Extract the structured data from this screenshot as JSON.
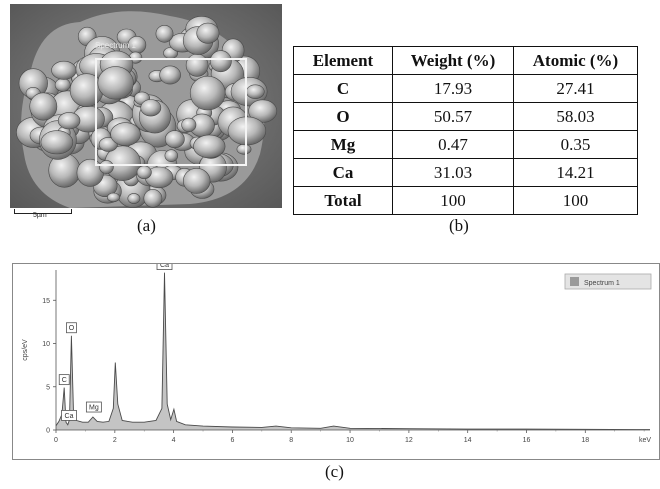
{
  "panel_a": {
    "caption": "(a)",
    "spectrum_tag": "Spectrum 1",
    "scale_label": "5µm"
  },
  "panel_b": {
    "caption": "(b)",
    "headers": [
      "Element",
      "Weight (%)",
      "Atomic (%)"
    ],
    "rows": [
      {
        "element": "C",
        "weight": "17.93",
        "atomic": "27.41"
      },
      {
        "element": "O",
        "weight": "50.57",
        "atomic": "58.03"
      },
      {
        "element": "Mg",
        "weight": "0.47",
        "atomic": "0.35"
      },
      {
        "element": "Ca",
        "weight": "31.03",
        "atomic": "14.21"
      },
      {
        "element": "Total",
        "weight": "100",
        "atomic": "100"
      }
    ]
  },
  "panel_c": {
    "caption": "(c)",
    "legend": "Spectrum 1",
    "legend_color": "#9a9a9a",
    "fill_color": "#c4c4c4",
    "line_color": "#4a4a4a"
  },
  "chart_data": {
    "type": "area",
    "title": "",
    "xlabel": "keV",
    "ylabel": "cps/eV",
    "xlim": [
      0,
      20.2
    ],
    "ylim": [
      0,
      18.5
    ],
    "x_ticks": [
      0,
      2,
      4,
      6,
      8,
      10,
      12,
      14,
      16,
      18
    ],
    "y_ticks": [
      0,
      5,
      10,
      15
    ],
    "legend_position": "top-right",
    "series": [
      {
        "name": "Spectrum 1",
        "points": [
          [
            0.0,
            0.5
          ],
          [
            0.1,
            1.0
          ],
          [
            0.2,
            1.8
          ],
          [
            0.28,
            4.9
          ],
          [
            0.34,
            0.9
          ],
          [
            0.4,
            0.6
          ],
          [
            0.46,
            1.2
          ],
          [
            0.525,
            10.9
          ],
          [
            0.6,
            1.6
          ],
          [
            0.7,
            1.1
          ],
          [
            0.9,
            0.9
          ],
          [
            1.1,
            0.9
          ],
          [
            1.254,
            1.5
          ],
          [
            1.4,
            1.0
          ],
          [
            1.6,
            0.9
          ],
          [
            1.8,
            1.0
          ],
          [
            1.95,
            2.5
          ],
          [
            2.015,
            7.8
          ],
          [
            2.1,
            3.0
          ],
          [
            2.25,
            1.1
          ],
          [
            2.6,
            0.9
          ],
          [
            3.0,
            0.9
          ],
          [
            3.4,
            1.1
          ],
          [
            3.6,
            2.5
          ],
          [
            3.69,
            18.2
          ],
          [
            3.78,
            3.0
          ],
          [
            3.9,
            1.2
          ],
          [
            4.01,
            2.4
          ],
          [
            4.1,
            1.0
          ],
          [
            4.4,
            0.6
          ],
          [
            5.0,
            0.45
          ],
          [
            6.0,
            0.35
          ],
          [
            7.0,
            0.3
          ],
          [
            7.48,
            0.45
          ],
          [
            8.0,
            0.25
          ],
          [
            9.0,
            0.2
          ],
          [
            9.44,
            0.45
          ],
          [
            10.0,
            0.2
          ],
          [
            12.0,
            0.15
          ],
          [
            14.0,
            0.1
          ],
          [
            16.0,
            0.1
          ],
          [
            18.0,
            0.08
          ],
          [
            20.2,
            0.05
          ]
        ]
      }
    ],
    "annotations": [
      {
        "label": "Ca",
        "x": 3.69,
        "y": 18.2
      },
      {
        "label": "O",
        "x": 0.525,
        "y": 10.9
      },
      {
        "label": "C",
        "x": 0.28,
        "y": 4.9
      },
      {
        "label": "Ca",
        "x": 0.34,
        "y": 1.8
      },
      {
        "label": "Mg",
        "x": 1.254,
        "y": 1.5
      }
    ]
  }
}
